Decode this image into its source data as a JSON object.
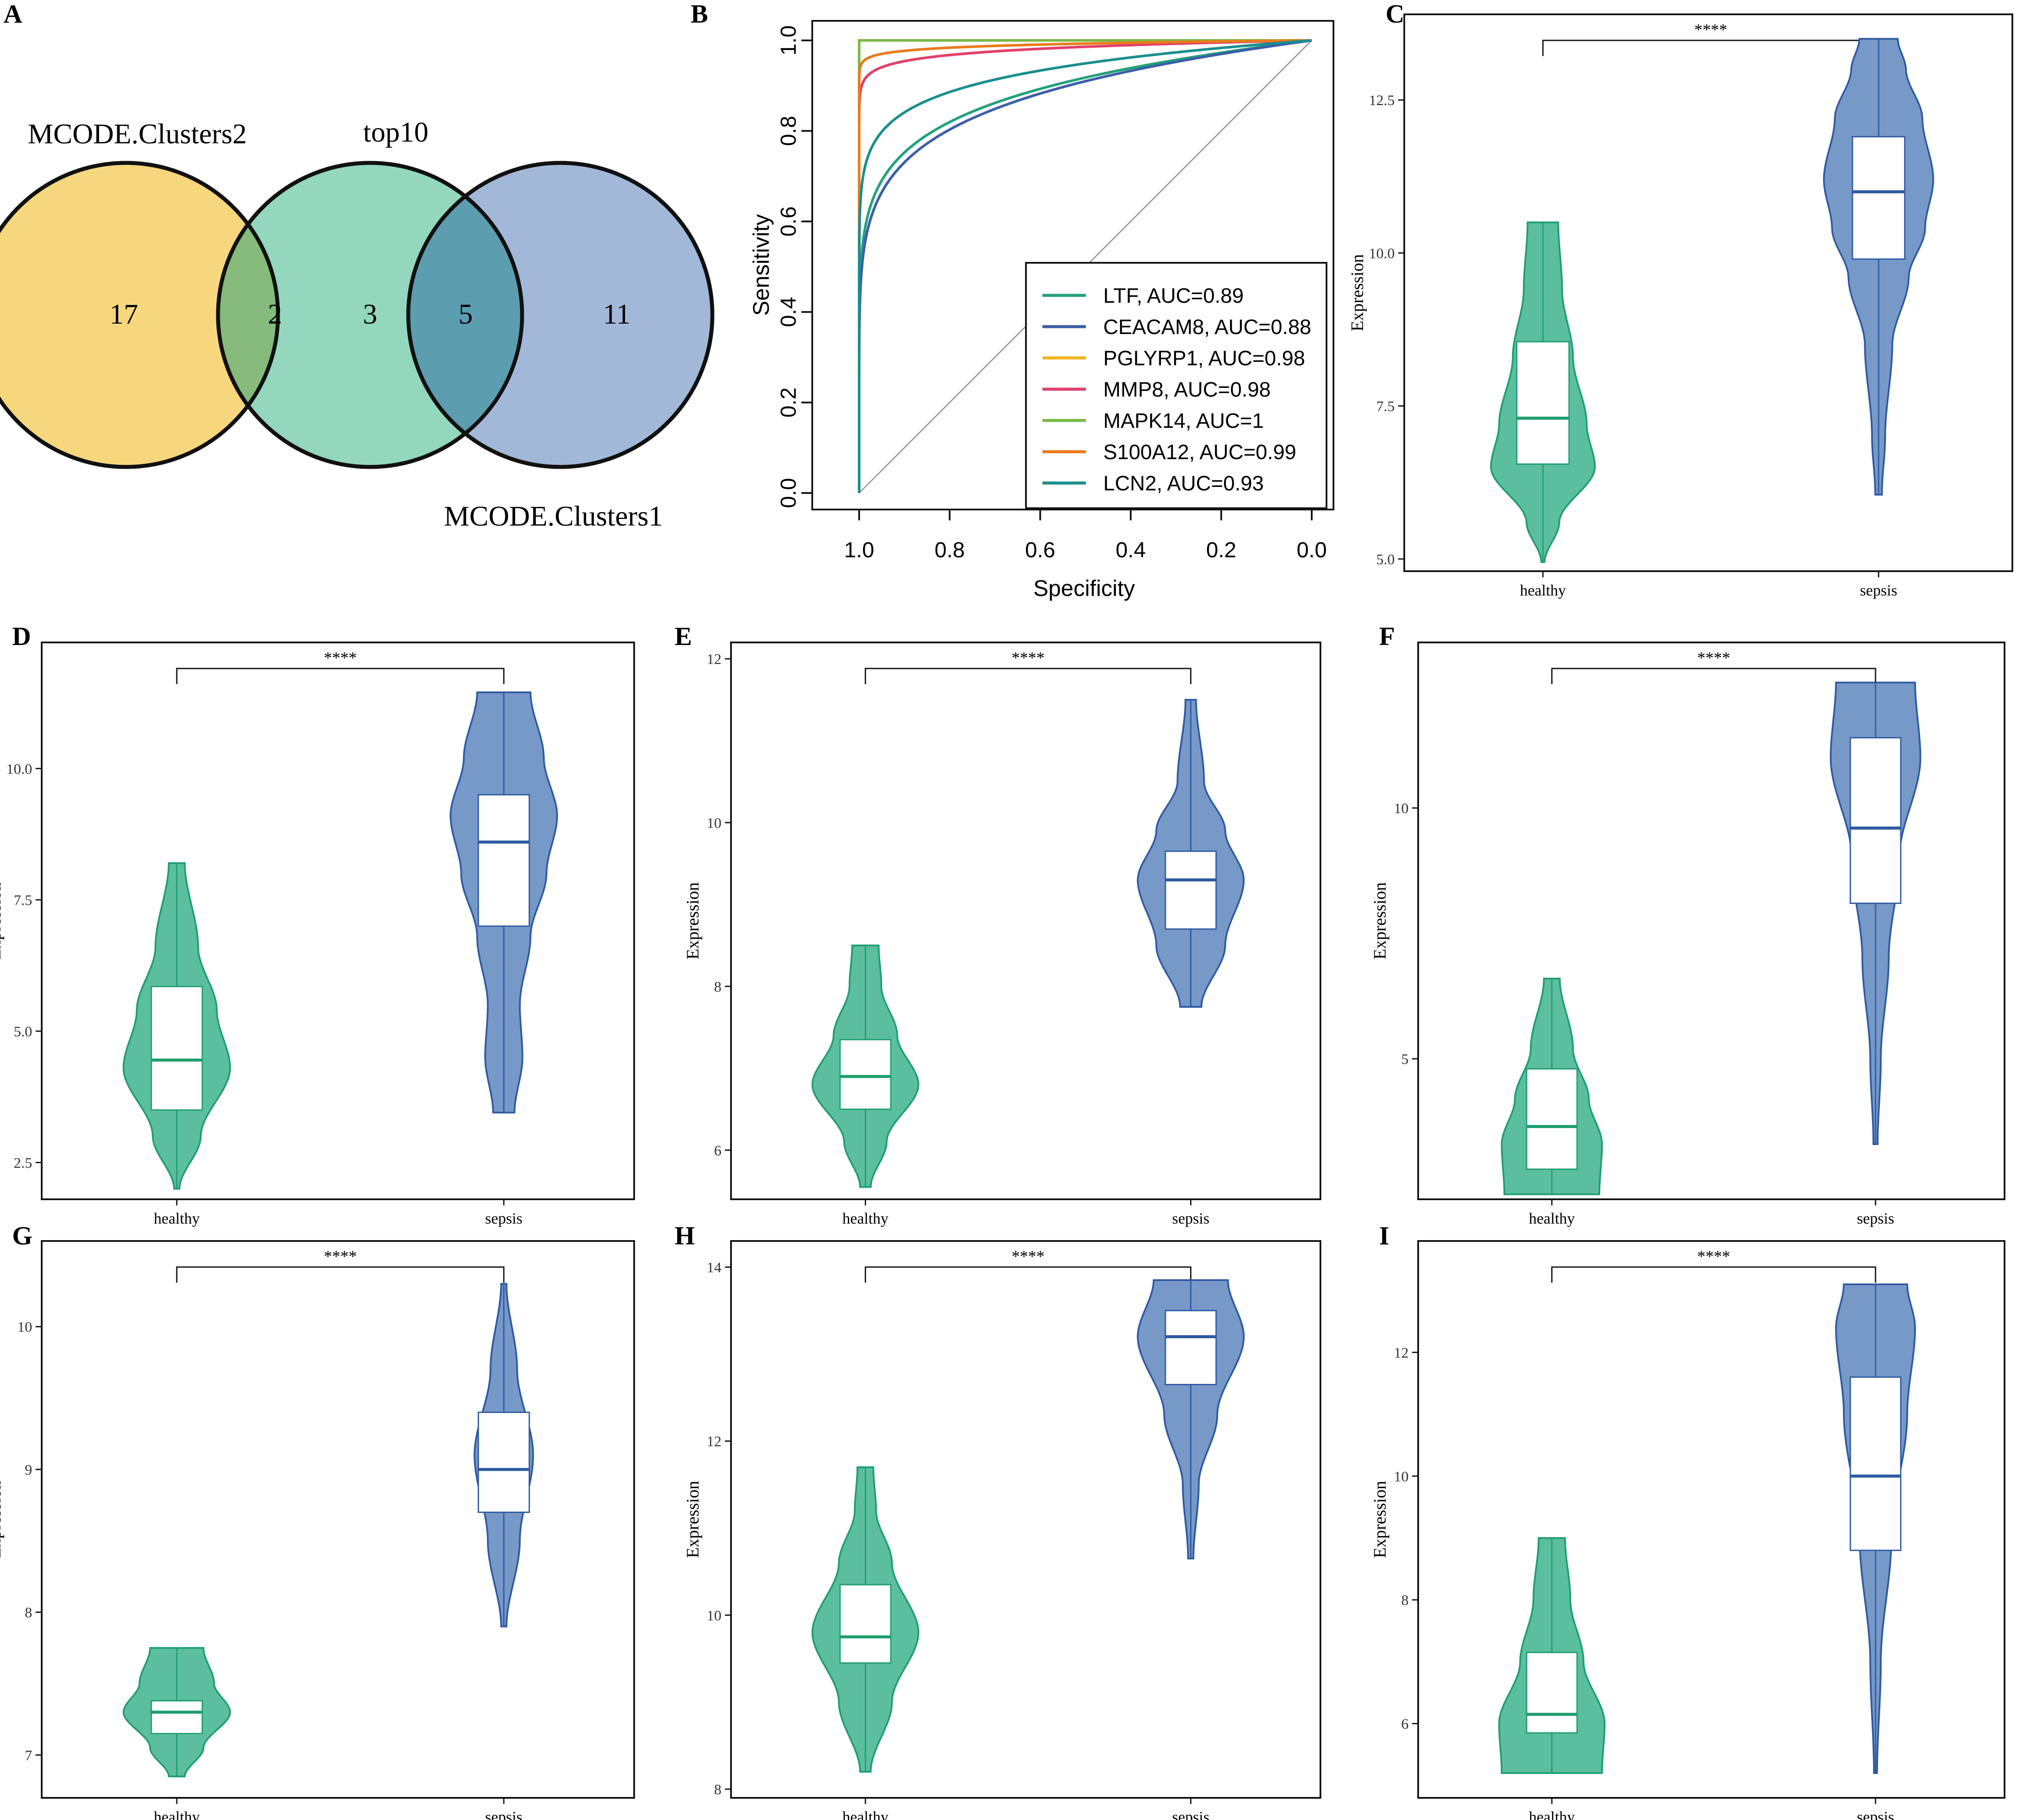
{
  "colors": {
    "healthy": "#5bbf9f",
    "healthy_line": "#1f9e6e",
    "sepsis": "#7799c8",
    "sepsis_line": "#2e5aa0",
    "venn_clusters2": "#f7d77e",
    "venn_top10": "#8dd5bb",
    "venn_clusters1": "#9db4d6"
  },
  "venn": {
    "panel_label": "A",
    "sets": [
      "MCODE.Clusters2",
      "top10",
      "MCODE.Clusters1"
    ],
    "regions": {
      "only_clusters2": "17",
      "clusters2_top10": "2",
      "only_top10": "3",
      "top10_clusters1": "5",
      "only_clusters1": "11"
    }
  },
  "chart_data": [
    {
      "panel": "B",
      "type": "line",
      "xlabel": "Specificity",
      "ylabel": "Sensitivity",
      "xlim": [
        1.0,
        0.0
      ],
      "ylim": [
        0.0,
        1.0
      ],
      "xticks": [
        "1.0",
        "0.8",
        "0.6",
        "0.4",
        "0.2",
        "0.0"
      ],
      "yticks": [
        "0.0",
        "0.2",
        "0.4",
        "0.6",
        "0.8",
        "1.0"
      ],
      "legend_position": "bottom-right",
      "series": [
        {
          "name": "LTF, AUC=0.89",
          "auc": 0.89,
          "color": "#23a07c"
        },
        {
          "name": "CEACAM8, AUC=0.88",
          "auc": 0.88,
          "color": "#3c5fa8"
        },
        {
          "name": "PGLYRP1, AUC=0.98",
          "auc": 0.98,
          "color": "#f2b320"
        },
        {
          "name": "MMP8, AUC=0.98",
          "auc": 0.98,
          "color": "#e0406e"
        },
        {
          "name": "MAPK14, AUC=1",
          "auc": 1.0,
          "color": "#79b947"
        },
        {
          "name": "S100A12, AUC=0.99",
          "auc": 0.99,
          "color": "#ea7b1c"
        },
        {
          "name": "LCN2, AUC=0.93",
          "auc": 0.93,
          "color": "#1a8e8e"
        }
      ]
    },
    {
      "panel": "C",
      "type": "violin",
      "ylabel": "Expression",
      "categories": [
        "healthy",
        "sepsis"
      ],
      "significance": "****",
      "ylim": [
        4.8,
        13.9
      ],
      "yticks": [
        {
          "v": 5.0,
          "t": "5.0"
        },
        {
          "v": 7.5,
          "t": "7.5"
        },
        {
          "v": 10.0,
          "t": "10.0"
        },
        {
          "v": 12.5,
          "t": "12.5"
        }
      ],
      "groups": [
        {
          "min": 4.95,
          "q1": 6.55,
          "median": 7.3,
          "q3": 8.55,
          "max": 10.5,
          "width_profile": [
            [
              4.95,
              0.03
            ],
            [
              5.6,
              0.3
            ],
            [
              6.5,
              0.95
            ],
            [
              7.2,
              0.8
            ],
            [
              8.3,
              0.55
            ],
            [
              9.4,
              0.35
            ],
            [
              10.5,
              0.28
            ]
          ]
        },
        {
          "min": 6.05,
          "q1": 9.9,
          "median": 11.0,
          "q3": 11.9,
          "max": 13.5,
          "width_profile": [
            [
              6.05,
              0.06
            ],
            [
              7.0,
              0.12
            ],
            [
              8.5,
              0.25
            ],
            [
              9.6,
              0.55
            ],
            [
              10.4,
              0.85
            ],
            [
              11.2,
              1.0
            ],
            [
              12.2,
              0.8
            ],
            [
              13.0,
              0.5
            ],
            [
              13.5,
              0.35
            ]
          ]
        }
      ]
    },
    {
      "panel": "D",
      "type": "violin",
      "ylabel": "Expression",
      "categories": [
        "healthy",
        "sepsis"
      ],
      "significance": "****",
      "ylim": [
        1.8,
        12.4
      ],
      "yticks": [
        {
          "v": 2.5,
          "t": "2.5"
        },
        {
          "v": 5.0,
          "t": "5.0"
        },
        {
          "v": 7.5,
          "t": "7.5"
        },
        {
          "v": 10.0,
          "t": "10.0"
        }
      ],
      "groups": [
        {
          "min": 2.0,
          "q1": 3.5,
          "median": 4.45,
          "q3": 5.85,
          "max": 8.2,
          "width_profile": [
            [
              2.0,
              0.05
            ],
            [
              3.0,
              0.45
            ],
            [
              4.3,
              1.0
            ],
            [
              5.4,
              0.75
            ],
            [
              6.6,
              0.4
            ],
            [
              8.2,
              0.15
            ]
          ]
        },
        {
          "min": 3.45,
          "q1": 7.0,
          "median": 8.6,
          "q3": 9.5,
          "max": 11.45,
          "width_profile": [
            [
              3.45,
              0.2
            ],
            [
              4.5,
              0.35
            ],
            [
              5.5,
              0.3
            ],
            [
              6.8,
              0.5
            ],
            [
              8.0,
              0.8
            ],
            [
              9.1,
              1.0
            ],
            [
              10.2,
              0.75
            ],
            [
              11.45,
              0.5
            ]
          ]
        }
      ]
    },
    {
      "panel": "E",
      "type": "violin",
      "ylabel": "Expression",
      "categories": [
        "healthy",
        "sepsis"
      ],
      "significance": "****",
      "ylim": [
        5.4,
        12.2
      ],
      "yticks": [
        {
          "v": 6,
          "t": "6"
        },
        {
          "v": 8,
          "t": "8"
        },
        {
          "v": 10,
          "t": "10"
        },
        {
          "v": 12,
          "t": "12"
        }
      ],
      "groups": [
        {
          "min": 5.55,
          "q1": 6.5,
          "median": 6.9,
          "q3": 7.35,
          "max": 8.5,
          "width_profile": [
            [
              5.55,
              0.1
            ],
            [
              6.1,
              0.4
            ],
            [
              6.8,
              1.0
            ],
            [
              7.4,
              0.6
            ],
            [
              8.0,
              0.3
            ],
            [
              8.5,
              0.25
            ]
          ]
        },
        {
          "min": 7.75,
          "q1": 8.7,
          "median": 9.3,
          "q3": 9.65,
          "max": 11.5,
          "width_profile": [
            [
              7.75,
              0.2
            ],
            [
              8.5,
              0.65
            ],
            [
              9.3,
              1.0
            ],
            [
              9.9,
              0.65
            ],
            [
              10.5,
              0.25
            ],
            [
              11.5,
              0.1
            ]
          ]
        }
      ]
    },
    {
      "panel": "F",
      "type": "violin",
      "ylabel": "Expression",
      "categories": [
        "healthy",
        "sepsis"
      ],
      "significance": "****",
      "ylim": [
        2.2,
        13.3
      ],
      "yticks": [
        {
          "v": 5,
          "t": "5"
        },
        {
          "v": 10,
          "t": "10"
        }
      ],
      "groups": [
        {
          "min": 2.3,
          "q1": 2.8,
          "median": 3.65,
          "q3": 4.8,
          "max": 6.6,
          "width_profile": [
            [
              2.3,
              0.9
            ],
            [
              3.3,
              0.95
            ],
            [
              4.2,
              0.7
            ],
            [
              5.2,
              0.4
            ],
            [
              6.6,
              0.15
            ]
          ]
        },
        {
          "min": 3.3,
          "q1": 8.1,
          "median": 9.6,
          "q3": 11.4,
          "max": 12.5,
          "width_profile": [
            [
              3.3,
              0.04
            ],
            [
              5.0,
              0.1
            ],
            [
              7.0,
              0.25
            ],
            [
              9.0,
              0.45
            ],
            [
              11.0,
              0.85
            ],
            [
              12.5,
              0.75
            ]
          ]
        }
      ]
    },
    {
      "panel": "G",
      "type": "violin",
      "ylabel": "Expression",
      "categories": [
        "healthy",
        "sepsis"
      ],
      "significance": "****",
      "ylim": [
        6.7,
        10.6
      ],
      "yticks": [
        {
          "v": 7,
          "t": "7"
        },
        {
          "v": 8,
          "t": "8"
        },
        {
          "v": 9,
          "t": "9"
        },
        {
          "v": 10,
          "t": "10"
        }
      ],
      "groups": [
        {
          "min": 6.85,
          "q1": 7.15,
          "median": 7.3,
          "q3": 7.38,
          "max": 7.75,
          "width_profile": [
            [
              6.85,
              0.15
            ],
            [
              7.05,
              0.5
            ],
            [
              7.3,
              1.0
            ],
            [
              7.5,
              0.7
            ],
            [
              7.75,
              0.5
            ]
          ]
        },
        {
          "min": 7.9,
          "q1": 8.7,
          "median": 9.0,
          "q3": 9.4,
          "max": 10.3,
          "width_profile": [
            [
              7.9,
              0.05
            ],
            [
              8.5,
              0.3
            ],
            [
              9.1,
              0.55
            ],
            [
              9.7,
              0.25
            ],
            [
              10.3,
              0.05
            ]
          ]
        }
      ]
    },
    {
      "panel": "H",
      "type": "violin",
      "ylabel": "Expression",
      "categories": [
        "healthy",
        "sepsis"
      ],
      "significance": "****",
      "ylim": [
        7.9,
        14.3
      ],
      "yticks": [
        {
          "v": 8,
          "t": "8"
        },
        {
          "v": 10,
          "t": "10"
        },
        {
          "v": 12,
          "t": "12"
        },
        {
          "v": 14,
          "t": "14"
        }
      ],
      "groups": [
        {
          "min": 8.2,
          "q1": 9.45,
          "median": 9.75,
          "q3": 10.35,
          "max": 11.7,
          "width_profile": [
            [
              8.2,
              0.1
            ],
            [
              9.0,
              0.5
            ],
            [
              9.8,
              1.0
            ],
            [
              10.6,
              0.5
            ],
            [
              11.2,
              0.2
            ],
            [
              11.7,
              0.15
            ]
          ]
        },
        {
          "min": 10.65,
          "q1": 12.65,
          "median": 13.2,
          "q3": 13.5,
          "max": 13.85,
          "width_profile": [
            [
              10.65,
              0.05
            ],
            [
              11.5,
              0.15
            ],
            [
              12.3,
              0.5
            ],
            [
              13.2,
              1.0
            ],
            [
              13.85,
              0.7
            ]
          ]
        }
      ]
    },
    {
      "panel": "I",
      "type": "violin",
      "ylabel": "Expression",
      "categories": [
        "healthy",
        "sepsis"
      ],
      "significance": "****",
      "ylim": [
        4.8,
        13.8
      ],
      "yticks": [
        {
          "v": 6,
          "t": "6"
        },
        {
          "v": 8,
          "t": "8"
        },
        {
          "v": 10,
          "t": "10"
        },
        {
          "v": 12,
          "t": "12"
        }
      ],
      "groups": [
        {
          "min": 5.2,
          "q1": 5.85,
          "median": 6.15,
          "q3": 7.15,
          "max": 9.0,
          "width_profile": [
            [
              5.2,
              0.95
            ],
            [
              6.0,
              1.0
            ],
            [
              7.0,
              0.6
            ],
            [
              8.0,
              0.35
            ],
            [
              9.0,
              0.25
            ]
          ]
        },
        {
          "min": 5.2,
          "q1": 8.8,
          "median": 10.0,
          "q3": 11.6,
          "max": 13.1,
          "width_profile": [
            [
              5.2,
              0.03
            ],
            [
              7.0,
              0.1
            ],
            [
              9.0,
              0.3
            ],
            [
              11.0,
              0.6
            ],
            [
              12.4,
              0.75
            ],
            [
              13.1,
              0.6
            ]
          ]
        }
      ]
    }
  ]
}
